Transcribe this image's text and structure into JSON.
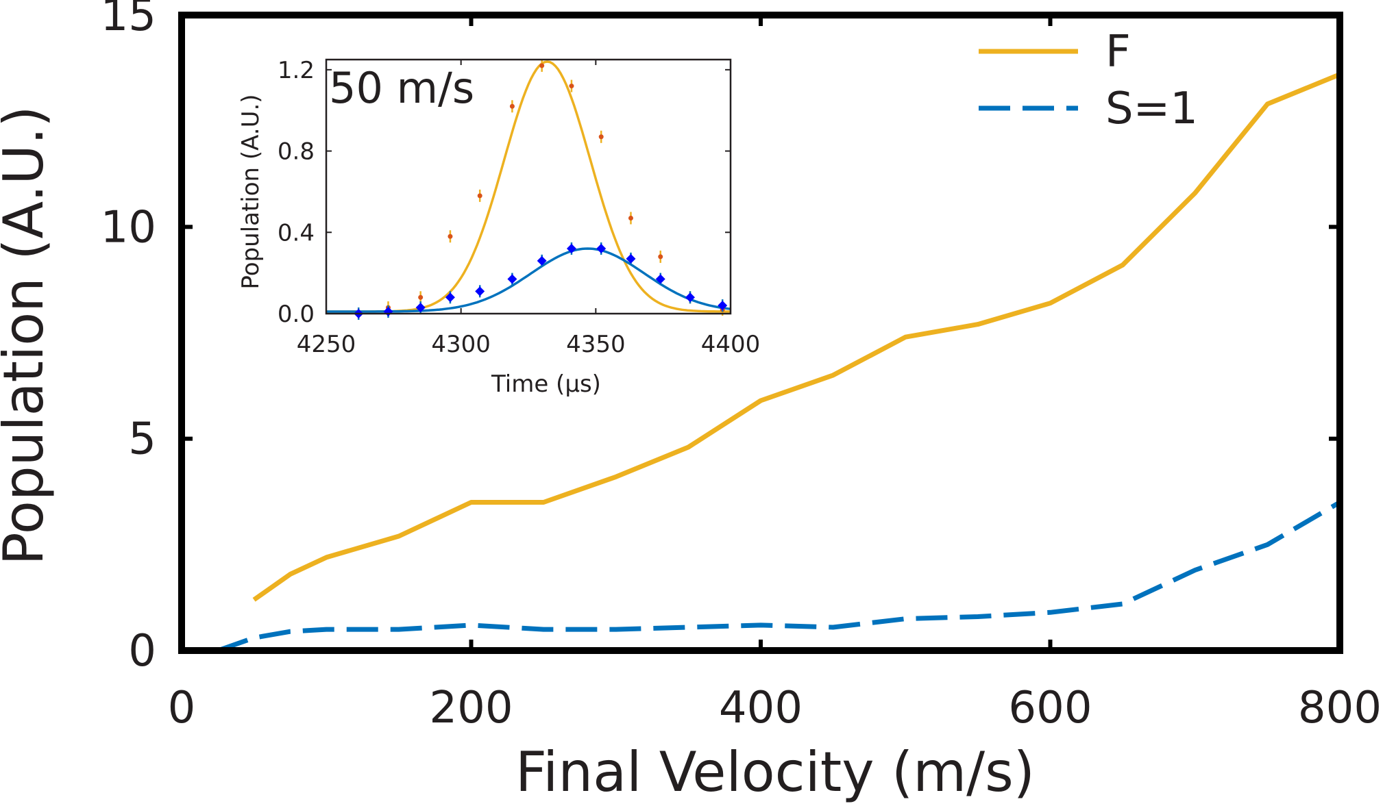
{
  "chart_data": [
    {
      "type": "line",
      "xlabel": "Final Velocity (m/s)",
      "ylabel": "Population (A.U.)",
      "xlim": [
        0,
        800
      ],
      "ylim": [
        0,
        15
      ],
      "x_ticks": [
        "0",
        "200",
        "400",
        "600",
        "800"
      ],
      "y_ticks": [
        "0",
        "5",
        "10",
        "15"
      ],
      "legend_position": "top-right",
      "series": [
        {
          "name": "F",
          "color": "#edb120",
          "style": "solid",
          "x": [
            50,
            75,
            100,
            150,
            200,
            250,
            300,
            350,
            400,
            450,
            500,
            550,
            600,
            650,
            700,
            750,
            800
          ],
          "y": [
            1.2,
            1.8,
            2.2,
            2.7,
            3.5,
            3.5,
            4.1,
            4.8,
            5.9,
            6.5,
            7.4,
            7.7,
            8.2,
            9.1,
            10.8,
            12.9,
            13.6
          ]
        },
        {
          "name": "S=1",
          "color": "#0072bd",
          "style": "dashed",
          "x": [
            25,
            50,
            75,
            100,
            150,
            200,
            250,
            300,
            350,
            400,
            450,
            500,
            550,
            600,
            650,
            700,
            750,
            800
          ],
          "y": [
            0.0,
            0.3,
            0.45,
            0.5,
            0.5,
            0.6,
            0.5,
            0.5,
            0.55,
            0.6,
            0.55,
            0.75,
            0.8,
            0.9,
            1.1,
            1.9,
            2.5,
            3.5
          ]
        }
      ]
    },
    {
      "type": "scatter",
      "annotation": "50 m/s",
      "xlabel": "Time (μs)",
      "ylabel": "Population (A.U.)",
      "xlim": [
        4250,
        4400
      ],
      "ylim": [
        0,
        1.25
      ],
      "x_ticks": [
        "4250",
        "4300",
        "4350",
        "4400"
      ],
      "y_ticks": [
        "0.0",
        "0.4",
        "0.8",
        "1.2"
      ],
      "series": [
        {
          "name": "F",
          "color": "#edb120",
          "marker_color": "#d95319",
          "x": [
            4262,
            4273,
            4285,
            4296,
            4307,
            4319,
            4330,
            4341,
            4352,
            4363,
            4374,
            4385,
            4397
          ],
          "y": [
            0.0,
            0.03,
            0.08,
            0.38,
            0.58,
            1.02,
            1.22,
            1.12,
            0.87,
            0.47,
            0.28,
            0.08,
            0.02
          ],
          "fit": {
            "amplitude": 1.23,
            "center": 4332,
            "sigma": 16,
            "offset": 0.01
          }
        },
        {
          "name": "S=1",
          "color": "#0072bd",
          "marker_color": "#0000ff",
          "x": [
            4262,
            4273,
            4285,
            4296,
            4307,
            4319,
            4330,
            4341,
            4352,
            4363,
            4374,
            4385,
            4397
          ],
          "y": [
            0.0,
            0.01,
            0.03,
            0.08,
            0.11,
            0.17,
            0.26,
            0.32,
            0.32,
            0.27,
            0.17,
            0.08,
            0.04
          ],
          "fit": {
            "amplitude": 0.31,
            "center": 4347,
            "sigma": 21,
            "offset": 0.01
          }
        }
      ]
    }
  ]
}
